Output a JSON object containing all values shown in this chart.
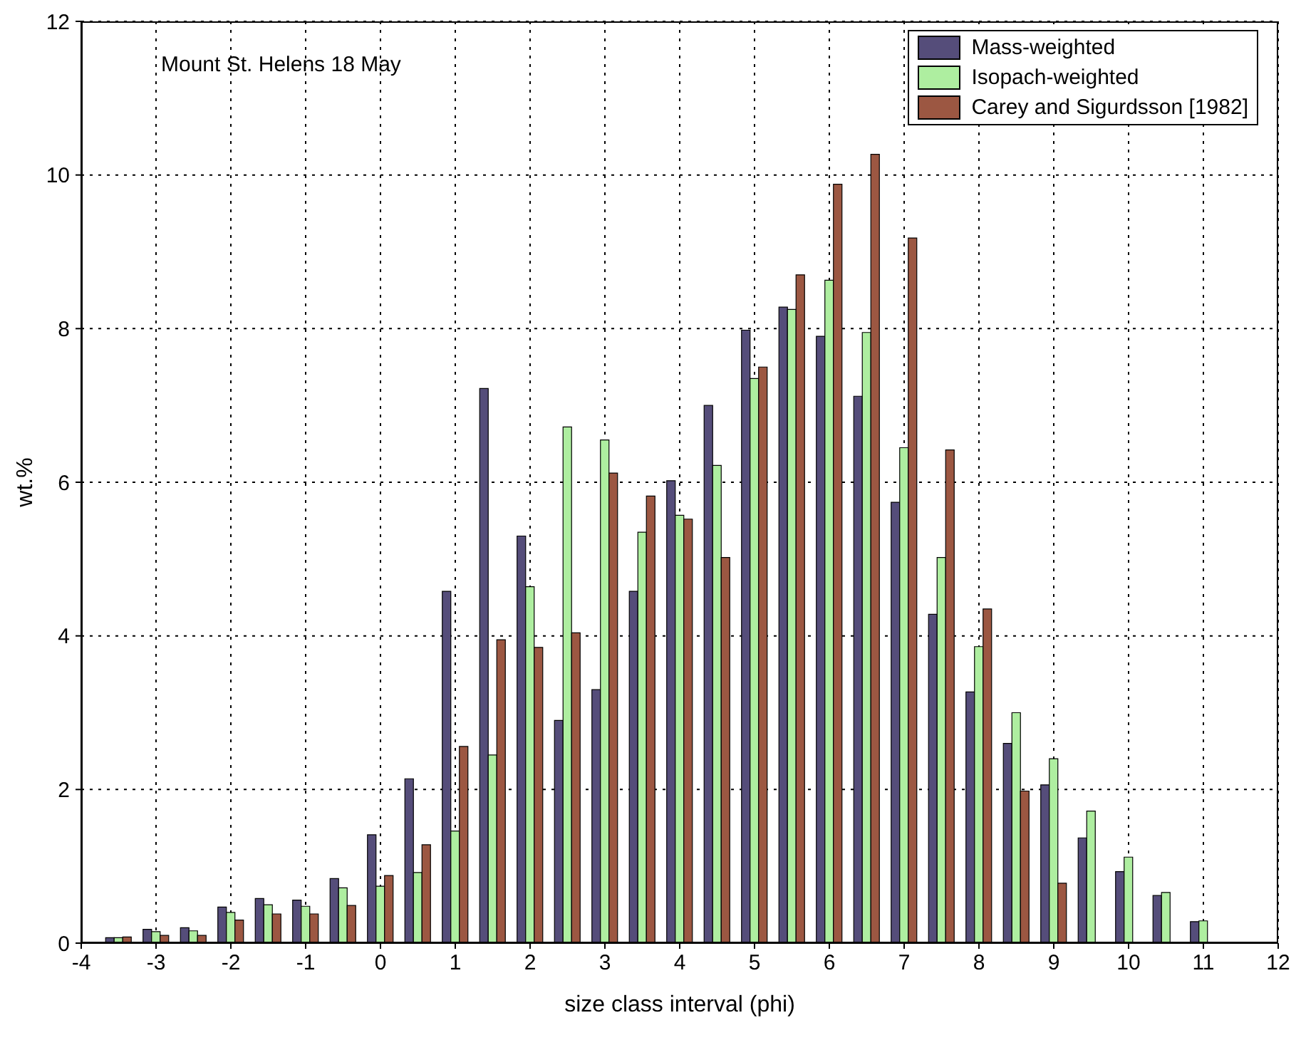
{
  "chart_data": {
    "type": "bar",
    "annotations": [
      "Mount St. Helens 18 May"
    ],
    "xlabel": "size class interval (phi)",
    "ylabel": "wt.%",
    "x": [
      -3.5,
      -3,
      -2.5,
      -2,
      -1.5,
      -1,
      -0.5,
      0,
      0.5,
      1,
      1.5,
      2,
      2.5,
      3,
      3.5,
      4,
      4.5,
      5,
      5.5,
      6,
      6.5,
      7,
      7.5,
      8,
      8.5,
      9,
      9.5,
      10,
      10.5,
      11
    ],
    "series": [
      {
        "name": "Mass-weighted",
        "color": "#554d7a",
        "values": [
          0.07,
          0.18,
          0.2,
          0.47,
          0.58,
          0.56,
          0.84,
          1.41,
          2.14,
          4.58,
          7.22,
          5.3,
          2.9,
          3.3,
          4.58,
          6.02,
          7.0,
          7.98,
          8.28,
          7.9,
          7.12,
          5.74,
          4.28,
          3.27,
          2.6,
          2.06,
          1.37,
          0.93,
          0.62,
          0.28
        ]
      },
      {
        "name": "Isopach-weighted",
        "color": "#aeeea0",
        "values": [
          0.07,
          0.15,
          0.16,
          0.4,
          0.5,
          0.48,
          0.72,
          0.74,
          0.92,
          1.46,
          2.45,
          4.64,
          6.72,
          6.55,
          5.35,
          5.57,
          6.22,
          7.35,
          8.25,
          8.63,
          7.95,
          6.45,
          5.02,
          3.86,
          3.0,
          2.4,
          1.72,
          1.12,
          0.66,
          0.29
        ]
      },
      {
        "name": "Carey and Sigurdsson [1982]",
        "color": "#9c5742",
        "values": [
          0.08,
          0.1,
          0.1,
          0.3,
          0.38,
          0.38,
          0.49,
          0.88,
          1.28,
          2.56,
          3.95,
          3.85,
          4.04,
          6.12,
          5.82,
          5.52,
          5.02,
          7.5,
          8.7,
          9.88,
          10.27,
          9.18,
          6.42,
          4.35,
          1.98,
          0.78,
          null,
          null,
          null,
          null
        ]
      }
    ],
    "xlim": [
      -4,
      12
    ],
    "xticks": [
      -4,
      -3,
      -2,
      -1,
      0,
      1,
      2,
      3,
      4,
      5,
      6,
      7,
      8,
      9,
      10,
      11,
      12
    ],
    "ylim": [
      0,
      12
    ],
    "yticks": [
      0,
      2,
      4,
      6,
      8,
      10,
      12
    ],
    "grid": true,
    "legend": "top right"
  }
}
